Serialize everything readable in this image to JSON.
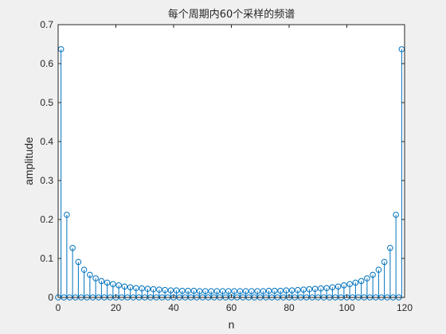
{
  "window": {
    "background": "#f0f0f0"
  },
  "chart_data": {
    "type": "stem",
    "title": "每个周期内60个采样的频谱",
    "xlabel": "n",
    "ylabel": "amplitude",
    "xlim": [
      0,
      120
    ],
    "ylim": [
      0,
      0.7
    ],
    "xticks": [
      0,
      20,
      40,
      60,
      80,
      100,
      120
    ],
    "xtick_labels": [
      "0",
      "20",
      "40",
      "60",
      "80",
      "100",
      "120"
    ],
    "yticks": [
      0,
      0.1,
      0.2,
      0.3,
      0.4,
      0.5,
      0.6,
      0.7
    ],
    "ytick_labels": [
      "0",
      "0.1",
      "0.2",
      "0.3",
      "0.4",
      "0.5",
      "0.6",
      "0.7"
    ],
    "grid": false,
    "series": [
      {
        "color": "#0072bd",
        "marker": "circle-open",
        "x": [
          0,
          1,
          2,
          3,
          4,
          5,
          6,
          7,
          8,
          9,
          10,
          11,
          12,
          13,
          14,
          15,
          16,
          17,
          18,
          19,
          20,
          21,
          22,
          23,
          24,
          25,
          26,
          27,
          28,
          29,
          30,
          31,
          32,
          33,
          34,
          35,
          36,
          37,
          38,
          39,
          40,
          41,
          42,
          43,
          44,
          45,
          46,
          47,
          48,
          49,
          50,
          51,
          52,
          53,
          54,
          55,
          56,
          57,
          58,
          59,
          60,
          61,
          62,
          63,
          64,
          65,
          66,
          67,
          68,
          69,
          70,
          71,
          72,
          73,
          74,
          75,
          76,
          77,
          78,
          79,
          80,
          81,
          82,
          83,
          84,
          85,
          86,
          87,
          88,
          89,
          90,
          91,
          92,
          93,
          94,
          95,
          96,
          97,
          98,
          99,
          100,
          101,
          102,
          103,
          104,
          105,
          106,
          107,
          108,
          109,
          110,
          111,
          112,
          113,
          114,
          115,
          116,
          117,
          118,
          119
        ],
        "values": [
          0,
          0.637,
          0,
          0.212,
          0,
          0.127,
          0,
          0.091,
          0,
          0.071,
          0,
          0.058,
          0,
          0.049,
          0,
          0.042,
          0,
          0.038,
          0,
          0.034,
          0,
          0.031,
          0,
          0.028,
          0,
          0.026,
          0,
          0.024,
          0,
          0.023,
          0,
          0.022,
          0,
          0.021,
          0,
          0.02,
          0,
          0.019,
          0,
          0.018,
          0,
          0.018,
          0,
          0.017,
          0,
          0.017,
          0,
          0.017,
          0,
          0.016,
          0,
          0.016,
          0,
          0.016,
          0,
          0.016,
          0,
          0.016,
          0,
          0.016,
          0,
          0.016,
          0,
          0.016,
          0,
          0.016,
          0,
          0.016,
          0,
          0.016,
          0,
          0.016,
          0,
          0.017,
          0,
          0.017,
          0,
          0.017,
          0,
          0.018,
          0,
          0.018,
          0,
          0.019,
          0,
          0.02,
          0,
          0.021,
          0,
          0.022,
          0,
          0.023,
          0,
          0.024,
          0,
          0.026,
          0,
          0.028,
          0,
          0.031,
          0,
          0.034,
          0,
          0.038,
          0,
          0.042,
          0,
          0.049,
          0,
          0.058,
          0,
          0.071,
          0,
          0.091,
          0,
          0.127,
          0,
          0.212,
          0,
          0.637
        ]
      }
    ]
  }
}
